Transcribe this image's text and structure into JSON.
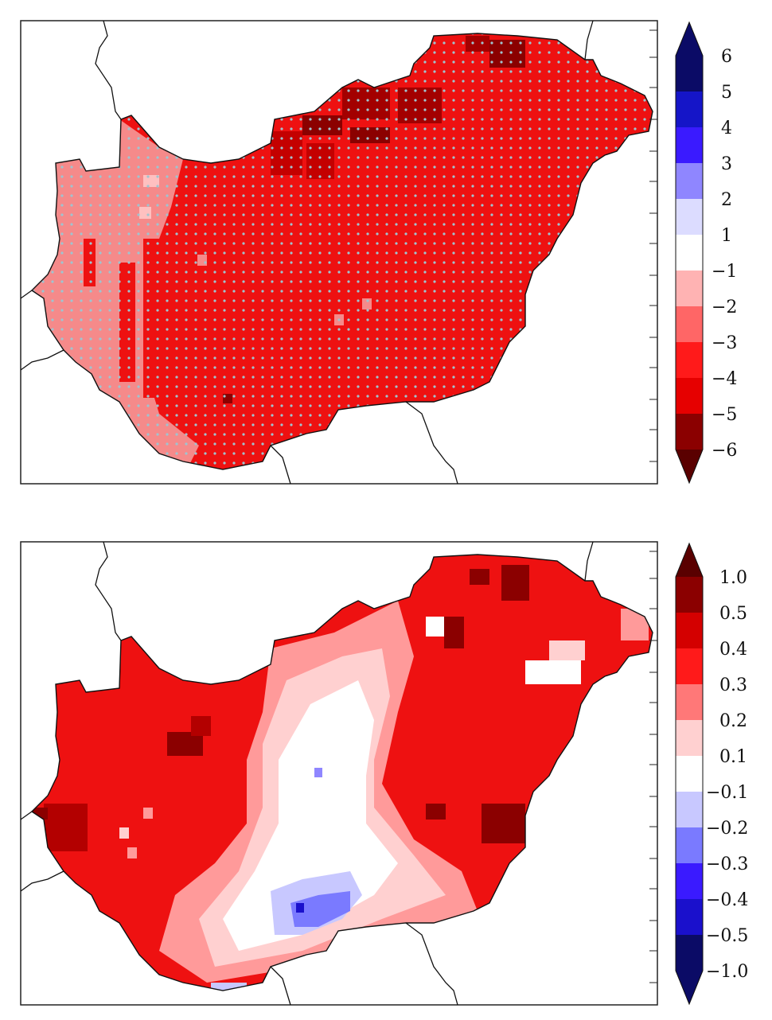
{
  "panels": [
    {
      "id": "top",
      "colorbar": {
        "labels": [
          "6",
          "5",
          "4",
          "3",
          "2",
          "1",
          "−1",
          "−2",
          "−3",
          "−4",
          "−5",
          "−6"
        ],
        "colors": [
          "#0b0b66",
          "#1515c8",
          "#3a1aff",
          "#8f86ff",
          "#dcdcff",
          "#ffffff",
          "#ffb3b3",
          "#ff6666",
          "#ff1a1a",
          "#e60000",
          "#8b0000"
        ],
        "top_arrow_color": "#0b0b66",
        "bottom_arrow_color": "#5a0000"
      },
      "map": {
        "dominant_color": "#ee1111",
        "western_strip_color": "#f58a8a",
        "dark_patch_color": "#8b0000",
        "stippled": true
      }
    },
    {
      "id": "bottom",
      "colorbar": {
        "labels": [
          "1.0",
          "0.5",
          "0.4",
          "0.3",
          "0.2",
          "0.1",
          "−0.1",
          "−0.2",
          "−0.3",
          "−0.4",
          "−0.5",
          "−1.0"
        ],
        "colors": [
          "#8b0000",
          "#d40000",
          "#ff1a1a",
          "#ff7878",
          "#ffd0d0",
          "#ffffff",
          "#c8c8ff",
          "#7a7aff",
          "#3a1aff",
          "#1a10cc",
          "#0b0b66"
        ],
        "top_arrow_color": "#5a0000",
        "bottom_arrow_color": "#0b0b66"
      },
      "map": {
        "west_color": "#ee1111",
        "east_color": "#ee1111",
        "central_color": "#ffffff",
        "south_blue_color": "#7a7aff",
        "stippled": true
      }
    }
  ]
}
